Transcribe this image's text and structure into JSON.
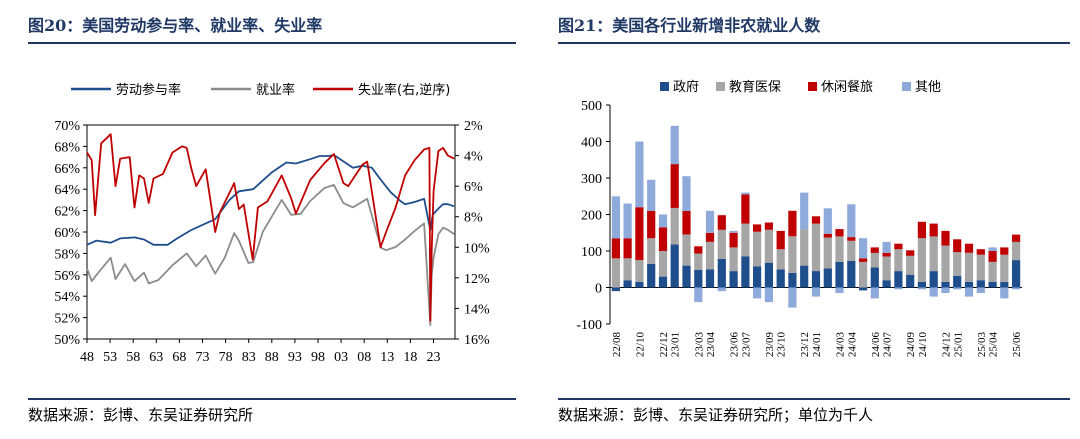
{
  "left": {
    "title": "图20：美国劳动参与率、就业率、失业率",
    "source": "数据来源：彭博、东吴证券研究所",
    "chart_data": {
      "type": "line",
      "x_ticks": [
        "48",
        "53",
        "58",
        "63",
        "68",
        "73",
        "78",
        "83",
        "88",
        "93",
        "98",
        "03",
        "08",
        "13",
        "18",
        "23"
      ],
      "x_range": [
        1948,
        2025.5
      ],
      "y_left": {
        "ticks": [
          "70%",
          "68%",
          "66%",
          "64%",
          "62%",
          "60%",
          "58%",
          "56%",
          "54%",
          "52%",
          "50%"
        ],
        "range": [
          50,
          70
        ]
      },
      "y_right": {
        "ticks": [
          "2%",
          "4%",
          "6%",
          "8%",
          "10%",
          "12%",
          "14%",
          "16%"
        ],
        "range": [
          2,
          16
        ],
        "reversed": true
      },
      "series": [
        {
          "name": "劳动参与率",
          "axis": "left",
          "color": "#1f4e8c",
          "points": [
            [
              1948,
              58.8
            ],
            [
              1950,
              59.2
            ],
            [
              1953,
              59.0
            ],
            [
              1955,
              59.4
            ],
            [
              1958,
              59.5
            ],
            [
              1960,
              59.3
            ],
            [
              1962,
              58.8
            ],
            [
              1965,
              58.8
            ],
            [
              1967,
              59.4
            ],
            [
              1970,
              60.2
            ],
            [
              1973,
              60.8
            ],
            [
              1975,
              61.2
            ],
            [
              1978,
              63.0
            ],
            [
              1980,
              63.8
            ],
            [
              1983,
              64.0
            ],
            [
              1985,
              64.8
            ],
            [
              1987,
              65.6
            ],
            [
              1990,
              66.5
            ],
            [
              1992,
              66.4
            ],
            [
              1995,
              66.8
            ],
            [
              1997,
              67.1
            ],
            [
              1999,
              67.1
            ],
            [
              2000,
              67.2
            ],
            [
              2002,
              66.6
            ],
            [
              2004,
              66.0
            ],
            [
              2006,
              66.2
            ],
            [
              2008,
              66.0
            ],
            [
              2010,
              64.8
            ],
            [
              2012,
              63.7
            ],
            [
              2014,
              62.9
            ],
            [
              2015,
              62.6
            ],
            [
              2017,
              62.8
            ],
            [
              2019,
              63.1
            ],
            [
              2020.3,
              60.2
            ],
            [
              2020.8,
              61.6
            ],
            [
              2022,
              62.2
            ],
            [
              2023,
              62.6
            ],
            [
              2024,
              62.6
            ],
            [
              2025.3,
              62.4
            ]
          ]
        },
        {
          "name": "就业率",
          "axis": "left",
          "color": "#8c8c8c",
          "points": [
            [
              1948,
              56.6
            ],
            [
              1949,
              55.4
            ],
            [
              1950,
              56.0
            ],
            [
              1953,
              57.6
            ],
            [
              1954,
              55.6
            ],
            [
              1956,
              57.0
            ],
            [
              1958,
              55.4
            ],
            [
              1960,
              56.2
            ],
            [
              1961,
              55.2
            ],
            [
              1963,
              55.5
            ],
            [
              1966,
              56.9
            ],
            [
              1969,
              58.0
            ],
            [
              1971,
              56.8
            ],
            [
              1973,
              57.8
            ],
            [
              1975,
              56.1
            ],
            [
              1977,
              57.6
            ],
            [
              1979,
              59.9
            ],
            [
              1980,
              59.2
            ],
            [
              1982,
              57.1
            ],
            [
              1983,
              57.2
            ],
            [
              1985,
              60.0
            ],
            [
              1987,
              61.5
            ],
            [
              1989,
              63.0
            ],
            [
              1991,
              61.6
            ],
            [
              1993,
              61.7
            ],
            [
              1995,
              62.9
            ],
            [
              1998,
              64.1
            ],
            [
              2000,
              64.4
            ],
            [
              2002,
              62.7
            ],
            [
              2004,
              62.3
            ],
            [
              2007,
              63.1
            ],
            [
              2009,
              59.9
            ],
            [
              2010,
              58.5
            ],
            [
              2011,
              58.3
            ],
            [
              2013,
              58.6
            ],
            [
              2015,
              59.3
            ],
            [
              2017,
              60.1
            ],
            [
              2019,
              60.8
            ],
            [
              2020.3,
              51.3
            ],
            [
              2020.6,
              56.0
            ],
            [
              2021,
              57.6
            ],
            [
              2022,
              59.8
            ],
            [
              2023,
              60.4
            ],
            [
              2024,
              60.2
            ],
            [
              2025.3,
              59.8
            ]
          ]
        },
        {
          "name": "失业率(右,逆序)",
          "axis": "right",
          "color": "#c00000",
          "points": [
            [
              1948,
              3.8
            ],
            [
              1949,
              4.3
            ],
            [
              1949.7,
              7.9
            ],
            [
              1951,
              3.2
            ],
            [
              1953,
              2.6
            ],
            [
              1954,
              6.0
            ],
            [
              1955,
              4.2
            ],
            [
              1957,
              4.1
            ],
            [
              1958,
              7.4
            ],
            [
              1959,
              5.3
            ],
            [
              1960,
              5.5
            ],
            [
              1961,
              7.1
            ],
            [
              1962,
              5.5
            ],
            [
              1964,
              5.2
            ],
            [
              1966,
              3.8
            ],
            [
              1968,
              3.4
            ],
            [
              1969,
              3.5
            ],
            [
              1970,
              4.9
            ],
            [
              1971,
              6.0
            ],
            [
              1973,
              4.9
            ],
            [
              1975,
              9.0
            ],
            [
              1976,
              7.7
            ],
            [
              1979,
              5.8
            ],
            [
              1980,
              7.5
            ],
            [
              1981,
              7.2
            ],
            [
              1982.9,
              10.8
            ],
            [
              1984,
              7.4
            ],
            [
              1986,
              7.0
            ],
            [
              1989,
              5.3
            ],
            [
              1991,
              6.8
            ],
            [
              1992,
              7.8
            ],
            [
              1995,
              5.6
            ],
            [
              1998,
              4.5
            ],
            [
              2000,
              3.9
            ],
            [
              2002,
              5.8
            ],
            [
              2003,
              6.0
            ],
            [
              2006,
              4.6
            ],
            [
              2007,
              4.4
            ],
            [
              2009.8,
              10.0
            ],
            [
              2011,
              9.0
            ],
            [
              2013,
              7.4
            ],
            [
              2015,
              5.3
            ],
            [
              2017,
              4.3
            ],
            [
              2019,
              3.6
            ],
            [
              2020.1,
              3.5
            ],
            [
              2020.3,
              14.8
            ],
            [
              2020.6,
              10.2
            ],
            [
              2021,
              6.3
            ],
            [
              2022,
              3.7
            ],
            [
              2023,
              3.5
            ],
            [
              2024,
              4.0
            ],
            [
              2025.3,
              4.2
            ]
          ]
        }
      ]
    }
  },
  "right": {
    "title": "图21：美国各行业新增非农就业人数",
    "source": "数据来源：彭博、东吴证券研究所；单位为千人",
    "chart_data": {
      "type": "bar",
      "stacked": true,
      "y_ticks": [
        "500",
        "400",
        "300",
        "200",
        "100",
        "0",
        "-100"
      ],
      "y_range": [
        -100,
        500
      ],
      "categories": [
        "22/08",
        "22/09",
        "22/10",
        "22/11",
        "22/12",
        "23/01",
        "23/02",
        "23/03",
        "23/04",
        "23/05",
        "23/06",
        "23/07",
        "23/08",
        "23/09",
        "23/10",
        "23/11",
        "23/12",
        "24/01",
        "24/02",
        "24/03",
        "24/04",
        "24/05",
        "24/06",
        "24/07",
        "24/08",
        "24/09",
        "24/10",
        "24/11",
        "24/12",
        "25/01",
        "25/02",
        "25/03",
        "25/04",
        "25/05",
        "25/06"
      ],
      "x_tick_labels": [
        "22/08",
        "22/10",
        "22/12",
        "23/01",
        "23/03",
        "23/04",
        "23/06",
        "23/07",
        "23/09",
        "23/10",
        "23/12",
        "24/01",
        "24/03",
        "24/04",
        "24/06",
        "24/07",
        "24/09",
        "24/10",
        "24/12",
        "25/01",
        "25/03",
        "25/04",
        "25/06"
      ],
      "series": [
        {
          "name": "政府",
          "color": "#1f4e8c",
          "values": [
            -10,
            20,
            15,
            65,
            30,
            118,
            60,
            48,
            50,
            78,
            45,
            85,
            58,
            68,
            50,
            40,
            60,
            45,
            52,
            70,
            73,
            -8,
            55,
            20,
            45,
            35,
            15,
            45,
            15,
            32,
            15,
            20,
            15,
            15,
            75
          ]
        },
        {
          "name": "教育医保",
          "color": "#a6a6a6",
          "values": [
            80,
            60,
            60,
            70,
            70,
            100,
            85,
            45,
            75,
            80,
            65,
            90,
            95,
            90,
            55,
            100,
            100,
            130,
            85,
            70,
            55,
            70,
            40,
            65,
            60,
            52,
            120,
            95,
            100,
            65,
            80,
            70,
            55,
            75,
            50
          ]
        },
        {
          "name": "休闲餐旅",
          "color": "#c00000",
          "values": [
            55,
            55,
            145,
            75,
            65,
            120,
            65,
            20,
            25,
            40,
            40,
            80,
            20,
            20,
            50,
            70,
            0,
            20,
            10,
            20,
            10,
            10,
            15,
            10,
            15,
            15,
            45,
            35,
            40,
            35,
            25,
            15,
            30,
            20,
            20
          ]
        },
        {
          "name": "其他",
          "color": "#8eaadb",
          "values": [
            115,
            95,
            180,
            85,
            35,
            105,
            95,
            -40,
            60,
            -10,
            5,
            5,
            -30,
            -40,
            0,
            -55,
            100,
            -25,
            70,
            -15,
            90,
            55,
            -30,
            30,
            -5,
            0,
            -5,
            -25,
            -15,
            -5,
            -25,
            -15,
            10,
            -30,
            -5
          ]
        }
      ]
    }
  }
}
